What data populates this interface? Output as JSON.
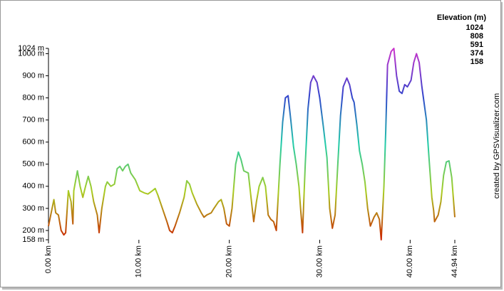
{
  "chart_data": {
    "type": "line",
    "legend_title": "Elevation (m)",
    "legend": [
      {
        "value": 1024,
        "color": "#cc33cc"
      },
      {
        "value": 808,
        "color": "#3344cc"
      },
      {
        "value": 591,
        "color": "#22ccaa"
      },
      {
        "value": 374,
        "color": "#aacc22"
      },
      {
        "value": 158,
        "color": "#cc2200"
      }
    ],
    "credit": "created by GPSVisualizer.com",
    "x": [
      0,
      0.3,
      0.6,
      0.8,
      1.1,
      1.4,
      1.7,
      1.9,
      2.2,
      2.5,
      2.7,
      2.8,
      3.2,
      3.5,
      3.8,
      4.1,
      4.4,
      4.7,
      5.0,
      5.4,
      5.6,
      5.9,
      6.3,
      6.5,
      6.9,
      7.3,
      7.6,
      7.9,
      8.2,
      8.5,
      8.8,
      9.1,
      9.6,
      10.1,
      10.6,
      11.0,
      11.5,
      11.8,
      12.1,
      12.6,
      13.1,
      13.4,
      13.7,
      14.0,
      14.5,
      15.0,
      15.3,
      15.6,
      15.9,
      16.4,
      16.9,
      17.2,
      17.5,
      18.0,
      18.3,
      18.8,
      19.1,
      19.4,
      19.7,
      20.0,
      20.3,
      20.7,
      21.0,
      21.3,
      21.6,
      22.1,
      22.4,
      22.7,
      23.0,
      23.3,
      23.7,
      24.0,
      24.3,
      24.6,
      24.9,
      25.2,
      25.6,
      25.9,
      26.2,
      26.5,
      26.8,
      27.1,
      27.4,
      27.7,
      27.9,
      28.1,
      28.4,
      28.7,
      29.0,
      29.3,
      29.7,
      30.0,
      30.4,
      30.8,
      31.1,
      31.4,
      31.7,
      32.0,
      32.3,
      32.6,
      33.0,
      33.3,
      33.6,
      33.8,
      34.1,
      34.4,
      34.7,
      35.0,
      35.3,
      35.6,
      36.0,
      36.3,
      36.6,
      36.8,
      37.1,
      37.3,
      37.5,
      37.9,
      38.2,
      38.5,
      38.8,
      39.1,
      39.4,
      39.7,
      40.1,
      40.4,
      40.7,
      41.0,
      41.3,
      41.8,
      42.1,
      42.4,
      42.6,
      42.7,
      43.1,
      43.4,
      43.7,
      44.0,
      44.3,
      44.6,
      44.94
    ],
    "values": [
      220,
      280,
      340,
      280,
      270,
      200,
      180,
      190,
      380,
      330,
      230,
      380,
      470,
      400,
      350,
      400,
      445,
      400,
      330,
      270,
      190,
      300,
      400,
      420,
      400,
      410,
      480,
      490,
      470,
      490,
      500,
      460,
      430,
      380,
      370,
      365,
      380,
      390,
      360,
      300,
      240,
      200,
      190,
      220,
      280,
      350,
      425,
      410,
      370,
      320,
      280,
      260,
      270,
      280,
      300,
      330,
      340,
      300,
      230,
      220,
      300,
      500,
      555,
      520,
      470,
      460,
      350,
      240,
      330,
      400,
      440,
      400,
      270,
      250,
      240,
      200,
      500,
      690,
      800,
      810,
      700,
      580,
      500,
      400,
      290,
      190,
      500,
      750,
      870,
      900,
      870,
      800,
      670,
      530,
      300,
      210,
      270,
      500,
      720,
      850,
      890,
      860,
      800,
      780,
      680,
      560,
      500,
      420,
      300,
      220,
      260,
      280,
      250,
      158,
      400,
      650,
      950,
      1010,
      1024,
      900,
      830,
      820,
      860,
      850,
      880,
      960,
      1000,
      960,
      850,
      700,
      520,
      350,
      290,
      240,
      270,
      330,
      450,
      510,
      515,
      440,
      260
    ],
    "xlim": [
      0,
      44.94
    ],
    "ylim": [
      158,
      1024
    ],
    "xticks": [
      {
        "value": 0,
        "label": "0.00 km"
      },
      {
        "value": 10,
        "label": "10.00 km"
      },
      {
        "value": 20,
        "label": "20.00 km"
      },
      {
        "value": 30,
        "label": "30.00 km"
      },
      {
        "value": 40,
        "label": "40.00 km"
      },
      {
        "value": 44.94,
        "label": "44.94 km"
      }
    ],
    "yticks": [
      {
        "value": 158,
        "label": "158 m"
      },
      {
        "value": 200,
        "label": "200 m"
      },
      {
        "value": 300,
        "label": "300 m"
      },
      {
        "value": 400,
        "label": "400 m"
      },
      {
        "value": 500,
        "label": "500 m"
      },
      {
        "value": 600,
        "label": "600 m"
      },
      {
        "value": 700,
        "label": "700 m"
      },
      {
        "value": 800,
        "label": "800 m"
      },
      {
        "value": 900,
        "label": "900 m"
      },
      {
        "value": 1000,
        "label": "1000 m"
      },
      {
        "value": 1024,
        "label": "1024 m"
      }
    ]
  }
}
